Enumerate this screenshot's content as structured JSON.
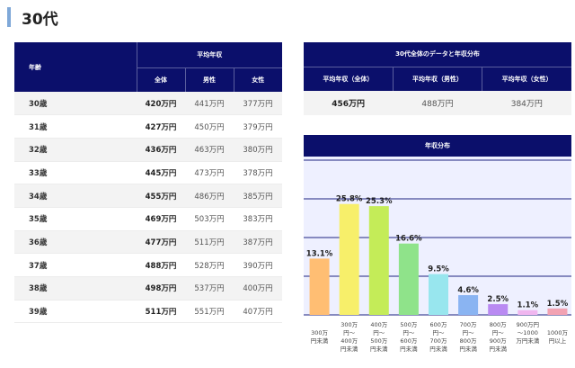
{
  "page": {
    "title": "30代"
  },
  "age_table": {
    "header_age": "年齢",
    "header_group": "平均年収",
    "header_total": "全体",
    "header_male": "男性",
    "header_female": "女性",
    "rows": [
      {
        "age": "30歳",
        "total": "420万円",
        "male": "441万円",
        "female": "377万円"
      },
      {
        "age": "31歳",
        "total": "427万円",
        "male": "450万円",
        "female": "379万円"
      },
      {
        "age": "32歳",
        "total": "436万円",
        "male": "463万円",
        "female": "380万円"
      },
      {
        "age": "33歳",
        "total": "445万円",
        "male": "473万円",
        "female": "378万円"
      },
      {
        "age": "34歳",
        "total": "455万円",
        "male": "486万円",
        "female": "385万円"
      },
      {
        "age": "35歳",
        "total": "469万円",
        "male": "503万円",
        "female": "383万円"
      },
      {
        "age": "36歳",
        "total": "477万円",
        "male": "511万円",
        "female": "387万円"
      },
      {
        "age": "37歳",
        "total": "488万円",
        "male": "528万円",
        "female": "390万円"
      },
      {
        "age": "38歳",
        "total": "498万円",
        "male": "537万円",
        "female": "400万円"
      },
      {
        "age": "39歳",
        "total": "511万円",
        "male": "551万円",
        "female": "407万円"
      }
    ]
  },
  "summary_table": {
    "title": "30代全体のデータと年収分布",
    "label_total": "平均年収（全体）",
    "label_male": "平均年収（男性）",
    "label_female": "平均年収（女性）",
    "value_total": "456万円",
    "value_male": "488万円",
    "value_female": "384万円"
  },
  "chart_data": {
    "type": "bar",
    "title": "年収分布",
    "categories": [
      [
        "300万",
        "円未満"
      ],
      [
        "300万",
        "円～",
        "400万",
        "円未満"
      ],
      [
        "400万",
        "円～",
        "500万",
        "円未満"
      ],
      [
        "500万",
        "円～",
        "600万",
        "円未満"
      ],
      [
        "600万",
        "円～",
        "700万",
        "円未満"
      ],
      [
        "700万",
        "円～",
        "800万",
        "円未満"
      ],
      [
        "800万",
        "円～",
        "900万",
        "円未満"
      ],
      [
        "900万円",
        "～1000",
        "万円未満"
      ],
      [
        "1000万",
        "円以上"
      ]
    ],
    "values": [
      13.1,
      25.8,
      25.3,
      16.6,
      9.5,
      4.6,
      2.5,
      1.1,
      1.5
    ],
    "value_labels": [
      "13.1%",
      "25.8%",
      "25.3%",
      "16.6%",
      "9.5%",
      "4.6%",
      "2.5%",
      "1.1%",
      "1.5%"
    ],
    "colors": [
      "#ffbe73",
      "#f7ef6a",
      "#c4ec58",
      "#8fe38a",
      "#98e6ee",
      "#8ab4f2",
      "#b98af2",
      "#f0b6ef",
      "#f2a2b2"
    ],
    "plot_background": "#eef0ff",
    "gridline_color": "#1f2380",
    "ylim": [
      0,
      36
    ],
    "gridlines": 4
  }
}
